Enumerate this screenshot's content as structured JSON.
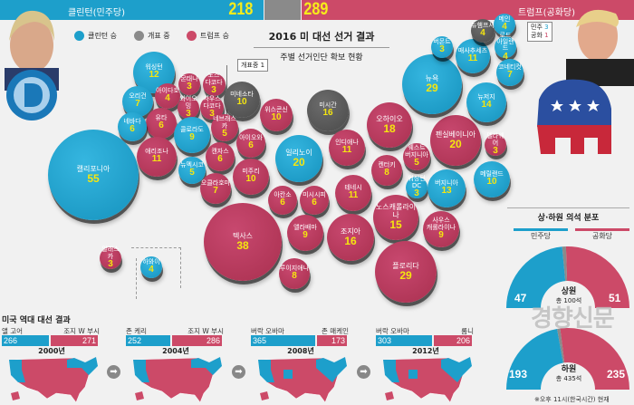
{
  "header": {
    "clinton_label": "클린턴(민주당)",
    "clinton_votes": "218",
    "trump_votes": "289",
    "trump_label": "트럼프(공화당)"
  },
  "legend": {
    "clinton": "클린턴 승",
    "counting": "개표 중",
    "trump": "트럼프 승"
  },
  "title": "2016 미 대선 선거 결과",
  "subtitle": "주별 선거인단 확보 현황",
  "tags": {
    "counting": "개표중",
    "counting_num": "1",
    "dem": "민주",
    "dem_num": "3",
    "rep": "공화",
    "rep_num": "1"
  },
  "colors": {
    "dem": "#1d9fcb",
    "rep": "#cc4a68",
    "counting": "#5b5b5b",
    "number": "#f5e60f"
  },
  "states": [
    {
      "name": "워싱턴",
      "votes": "12",
      "party": "d"
    },
    {
      "name": "오리건",
      "votes": "7",
      "party": "d"
    },
    {
      "name": "아이다호",
      "votes": "4",
      "party": "r"
    },
    {
      "name": "몬태나",
      "votes": "3",
      "party": "r"
    },
    {
      "name": "노스\n다코다",
      "votes": "3",
      "party": "r"
    },
    {
      "name": "와이오밍",
      "votes": "3",
      "party": "r"
    },
    {
      "name": "사우스\n다코다",
      "votes": "3",
      "party": "r"
    },
    {
      "name": "미네소타",
      "votes": "10",
      "party": "g"
    },
    {
      "name": "유타",
      "votes": "6",
      "party": "r"
    },
    {
      "name": "네바다",
      "votes": "6",
      "party": "d"
    },
    {
      "name": "콜로라도",
      "votes": "9",
      "party": "d"
    },
    {
      "name": "네브래스카",
      "votes": "5",
      "party": "r"
    },
    {
      "name": "아이오와",
      "votes": "6",
      "party": "r"
    },
    {
      "name": "캘리포니아",
      "votes": "55",
      "party": "d"
    },
    {
      "name": "애리조나",
      "votes": "11",
      "party": "r"
    },
    {
      "name": "뉴멕시코",
      "votes": "5",
      "party": "d"
    },
    {
      "name": "캔자스",
      "votes": "6",
      "party": "r"
    },
    {
      "name": "미주리",
      "votes": "10",
      "party": "r"
    },
    {
      "name": "오클라호마",
      "votes": "7",
      "party": "r"
    },
    {
      "name": "위스콘신",
      "votes": "10",
      "party": "r"
    },
    {
      "name": "미시간",
      "votes": "16",
      "party": "g"
    },
    {
      "name": "일리노이",
      "votes": "20",
      "party": "d"
    },
    {
      "name": "인디애나",
      "votes": "11",
      "party": "r"
    },
    {
      "name": "오하이오",
      "votes": "18",
      "party": "r"
    },
    {
      "name": "켄터키",
      "votes": "8",
      "party": "r"
    },
    {
      "name": "웨스트\n버지니아",
      "votes": "5",
      "party": "r"
    },
    {
      "name": "펜실베이니아",
      "votes": "20",
      "party": "r"
    },
    {
      "name": "델라웨어",
      "votes": "3",
      "party": "r"
    },
    {
      "name": "워싱턴DC",
      "votes": "3",
      "party": "d"
    },
    {
      "name": "버지니아",
      "votes": "13",
      "party": "d"
    },
    {
      "name": "메릴랜드",
      "votes": "10",
      "party": "d"
    },
    {
      "name": "테네시",
      "votes": "11",
      "party": "r"
    },
    {
      "name": "아칸소",
      "votes": "6",
      "party": "r"
    },
    {
      "name": "미시시피",
      "votes": "6",
      "party": "r"
    },
    {
      "name": "텍사스",
      "votes": "38",
      "party": "r"
    },
    {
      "name": "앨라배마",
      "votes": "9",
      "party": "r"
    },
    {
      "name": "조지아",
      "votes": "16",
      "party": "r"
    },
    {
      "name": "노스캐롤라이나",
      "votes": "15",
      "party": "r"
    },
    {
      "name": "사우스\n캐롤라이나",
      "votes": "9",
      "party": "r"
    },
    {
      "name": "플로리다",
      "votes": "29",
      "party": "r"
    },
    {
      "name": "루이지애나",
      "votes": "8",
      "party": "r"
    },
    {
      "name": "뉴욕",
      "votes": "29",
      "party": "d"
    },
    {
      "name": "뉴저지",
      "votes": "14",
      "party": "d"
    },
    {
      "name": "매사추세츠",
      "votes": "11",
      "party": "d"
    },
    {
      "name": "버몬트",
      "votes": "3",
      "party": "d"
    },
    {
      "name": "뉴햄프셔",
      "votes": "4",
      "party": "g"
    },
    {
      "name": "메인",
      "votes": "4",
      "party": "d"
    },
    {
      "name": "로드\n아일랜드",
      "votes": "4",
      "party": "d"
    },
    {
      "name": "코네티컷",
      "votes": "7",
      "party": "d"
    },
    {
      "name": "알래스카",
      "votes": "3",
      "party": "r"
    },
    {
      "name": "하와이",
      "votes": "4",
      "party": "d"
    }
  ],
  "history": {
    "title": "미국 역대 대선 결과",
    "elections": [
      {
        "year": "2000년",
        "dem_name": "앨 고어",
        "dem_votes": "266",
        "rep_name": "조지 W 부시",
        "rep_votes": "271"
      },
      {
        "year": "2004년",
        "dem_name": "존 케리",
        "dem_votes": "252",
        "rep_name": "조지 W 부시",
        "rep_votes": "286"
      },
      {
        "year": "2008년",
        "dem_name": "버락 오바마",
        "dem_votes": "365",
        "rep_name": "존 매케인",
        "rep_votes": "173"
      },
      {
        "year": "2012년",
        "dem_name": "버락 오바마",
        "dem_votes": "303",
        "rep_name": "롬니",
        "rep_votes": "206"
      }
    ]
  },
  "congress": {
    "title": "상·하원 의석 분포",
    "dem_label": "민주당",
    "rep_label": "공화당",
    "senate": {
      "name": "상원",
      "total": "총 100석",
      "dem": "47",
      "rep": "51",
      "total_num": 100
    },
    "house": {
      "name": "하원",
      "total": "총 435석",
      "dem": "193",
      "rep": "235",
      "total_num": 435
    }
  },
  "watermark": "경향신문",
  "footnote": "※오후 11시(한국시간) 현재"
}
